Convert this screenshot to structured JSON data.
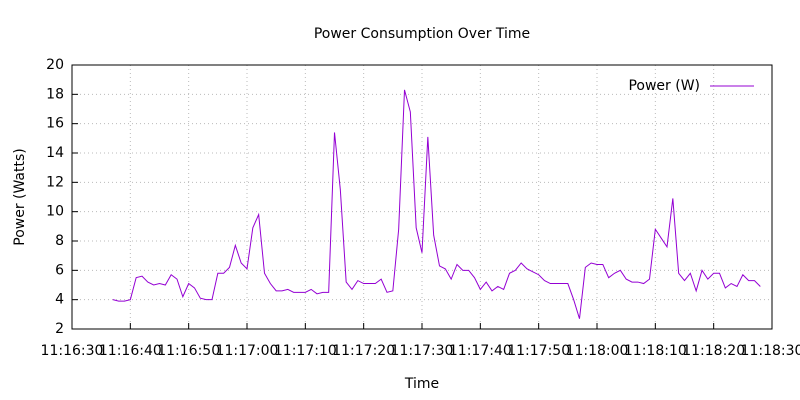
{
  "chart_data": {
    "type": "line",
    "title": "Power Consumption Over Time",
    "x_label": "Time",
    "y_label": "Power (Watts)",
    "x": [
      "11:16:37",
      "11:16:38",
      "11:16:39",
      "11:16:40",
      "11:16:41",
      "11:16:42",
      "11:16:43",
      "11:16:44",
      "11:16:45",
      "11:16:46",
      "11:16:47",
      "11:16:48",
      "11:16:49",
      "11:16:50",
      "11:16:51",
      "11:16:52",
      "11:16:53",
      "11:16:54",
      "11:16:55",
      "11:16:56",
      "11:16:57",
      "11:16:58",
      "11:16:59",
      "11:17:00",
      "11:17:01",
      "11:17:02",
      "11:17:03",
      "11:17:04",
      "11:17:05",
      "11:17:06",
      "11:17:07",
      "11:17:08",
      "11:17:09",
      "11:17:10",
      "11:17:11",
      "11:17:12",
      "11:17:13",
      "11:17:14",
      "11:17:15",
      "11:17:16",
      "11:17:17",
      "11:17:18",
      "11:17:19",
      "11:17:20",
      "11:17:21",
      "11:17:22",
      "11:17:23",
      "11:17:24",
      "11:17:25",
      "11:17:26",
      "11:17:27",
      "11:17:28",
      "11:17:29",
      "11:17:30",
      "11:17:31",
      "11:17:32",
      "11:17:33",
      "11:17:34",
      "11:17:35",
      "11:17:36",
      "11:17:37",
      "11:17:38",
      "11:17:39",
      "11:17:40",
      "11:17:41",
      "11:17:42",
      "11:17:43",
      "11:17:44",
      "11:17:45",
      "11:17:46",
      "11:17:47",
      "11:17:48",
      "11:17:49",
      "11:17:50",
      "11:17:51",
      "11:17:52",
      "11:17:53",
      "11:17:54",
      "11:17:55",
      "11:17:56",
      "11:17:57",
      "11:17:58",
      "11:17:59",
      "11:18:00",
      "11:18:01",
      "11:18:02",
      "11:18:03",
      "11:18:04",
      "11:18:05",
      "11:18:06",
      "11:18:07",
      "11:18:08",
      "11:18:09",
      "11:18:10",
      "11:18:11",
      "11:18:12",
      "11:18:13",
      "11:18:14",
      "11:18:15",
      "11:18:16",
      "11:18:17",
      "11:18:18",
      "11:18:19",
      "11:18:20",
      "11:18:21",
      "11:18:22",
      "11:18:23",
      "11:18:24",
      "11:18:25",
      "11:18:26",
      "11:18:27",
      "11:18:28"
    ],
    "series": [
      {
        "name": "Power (W)",
        "color": "#9400d3",
        "values": [
          4.0,
          3.9,
          3.9,
          4.0,
          5.5,
          5.6,
          5.2,
          5.0,
          5.1,
          5.0,
          5.7,
          5.4,
          4.2,
          5.1,
          4.8,
          4.1,
          4.0,
          4.0,
          5.8,
          5.8,
          6.2,
          7.7,
          6.5,
          6.1,
          8.9,
          9.8,
          5.8,
          5.1,
          4.6,
          4.6,
          4.7,
          4.5,
          4.5,
          4.5,
          4.7,
          4.4,
          4.5,
          4.5,
          15.4,
          11.5,
          5.2,
          4.7,
          5.3,
          5.1,
          5.1,
          5.1,
          5.4,
          4.5,
          4.6,
          8.8,
          18.3,
          16.8,
          8.9,
          7.2,
          15.1,
          8.4,
          6.3,
          6.1,
          5.4,
          6.4,
          6.0,
          6.0,
          5.5,
          4.7,
          5.2,
          4.6,
          4.9,
          4.7,
          5.8,
          6.0,
          6.5,
          6.1,
          5.9,
          5.7,
          5.3,
          5.1,
          5.1,
          5.1,
          5.1,
          4.0,
          2.7,
          6.2,
          6.5,
          6.4,
          6.4,
          5.5,
          5.8,
          6.0,
          5.4,
          5.2,
          5.2,
          5.1,
          5.4,
          8.8,
          8.2,
          7.6,
          10.9,
          5.8,
          5.3,
          5.8,
          4.6,
          6.0,
          5.4,
          5.8,
          5.8,
          4.8,
          5.1,
          4.9,
          5.7,
          5.3,
          5.3,
          4.9
        ]
      }
    ],
    "xlim": [
      "11:16:30",
      "11:18:30"
    ],
    "xticks": [
      "11:16:30",
      "11:16:40",
      "11:16:50",
      "11:17:00",
      "11:17:10",
      "11:17:20",
      "11:17:30",
      "11:17:40",
      "11:17:50",
      "11:18:00",
      "11:18:10",
      "11:18:20",
      "11:18:30"
    ],
    "ylim": [
      2,
      20
    ],
    "yticks": [
      2,
      4,
      6,
      8,
      10,
      12,
      14,
      16,
      18,
      20
    ],
    "grid": true,
    "legend": "top right"
  }
}
